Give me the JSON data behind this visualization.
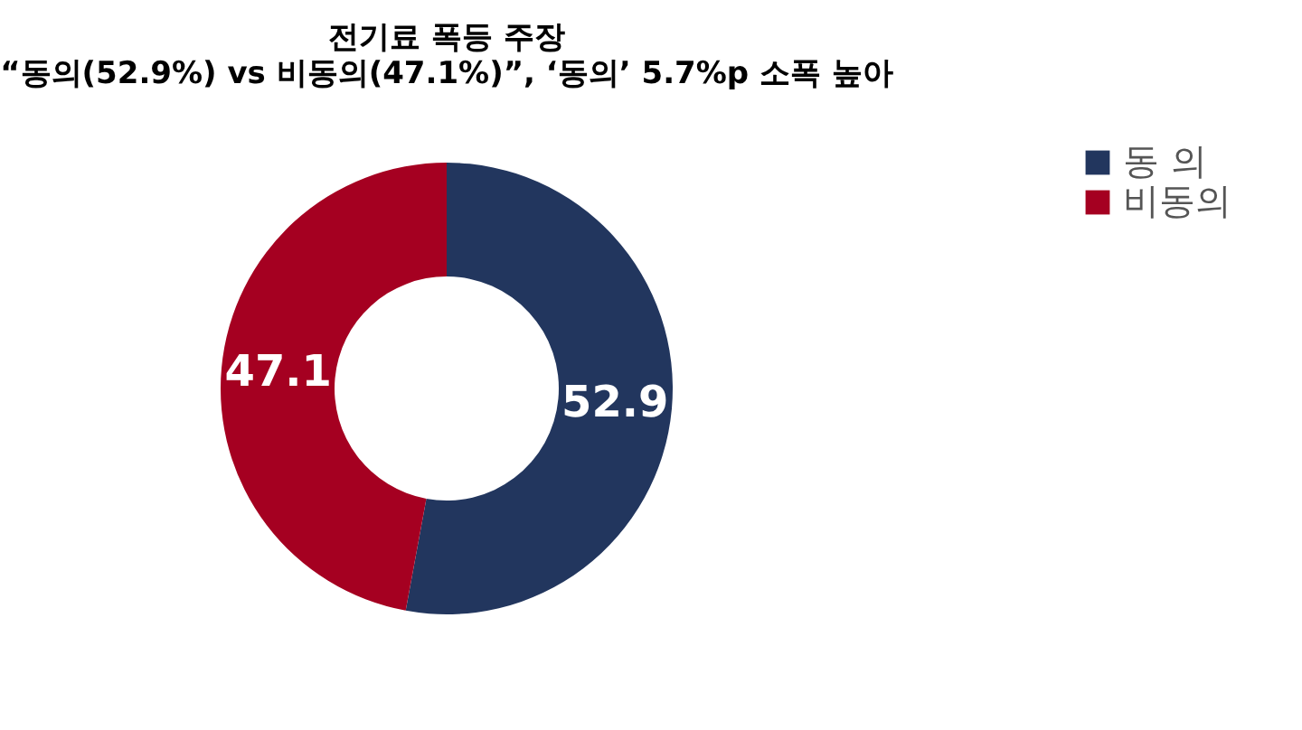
{
  "chart_data": {
    "type": "donut",
    "title": "전기료 폭등 주장",
    "subtitle": "“동의(52.9%) vs 비동의(47.1%)”, ‘동의’ 5.7%p 소폭 높아",
    "categories": [
      "동 의",
      "비동의"
    ],
    "values": [
      52.9,
      47.1
    ],
    "colors": [
      "#22365e",
      "#a50021"
    ],
    "data_labels": true,
    "legend": "right"
  }
}
